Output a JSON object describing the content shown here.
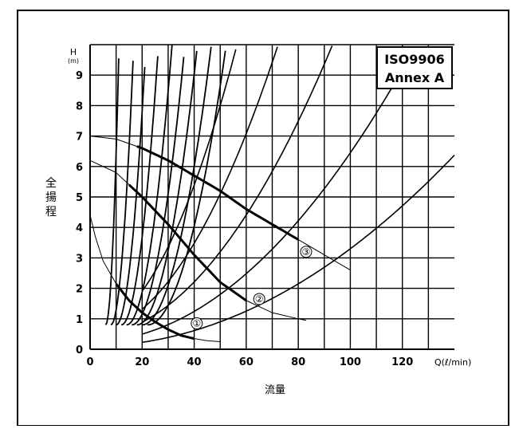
{
  "chart_data": {
    "type": "line",
    "badge": [
      "ISO9906",
      "Annex A"
    ],
    "ylabel": [
      "全",
      "揚",
      "程"
    ],
    "y_unit": [
      "H",
      "(m)"
    ],
    "xlabel": "流量",
    "x_unit": "Q(ℓ/min)",
    "xlim": [
      0,
      140
    ],
    "ylim": [
      0,
      10
    ],
    "x_ticks": [
      "0",
      "20",
      "40",
      "60",
      "80",
      "100",
      "120"
    ],
    "y_ticks": [
      "0",
      "1",
      "2",
      "3",
      "4",
      "5",
      "6",
      "7",
      "8",
      "9"
    ],
    "grid": true,
    "series": [
      {
        "label": "①",
        "x": [
          0,
          2,
          5,
          10,
          15,
          20,
          25,
          30,
          35,
          40,
          45,
          50
        ],
        "y": [
          4.4,
          3.7,
          2.9,
          2.15,
          1.6,
          1.2,
          0.9,
          0.65,
          0.45,
          0.35,
          0.28,
          0.25
        ],
        "emphasis_x": [
          10,
          40
        ],
        "label_at": [
          41,
          0.85
        ]
      },
      {
        "label": "②",
        "x": [
          0,
          10,
          20,
          30,
          40,
          50,
          60,
          70,
          80,
          83
        ],
        "y": [
          6.2,
          5.8,
          5.0,
          4.1,
          3.1,
          2.2,
          1.6,
          1.2,
          1.0,
          0.95
        ],
        "emphasis_x": [
          15,
          60
        ],
        "label_at": [
          65,
          1.65
        ]
      },
      {
        "label": "③",
        "x": [
          0,
          10,
          20,
          30,
          40,
          50,
          60,
          70,
          80,
          90,
          100
        ],
        "y": [
          7.0,
          6.9,
          6.6,
          6.2,
          5.7,
          5.2,
          4.6,
          4.1,
          3.6,
          3.1,
          2.6
        ],
        "emphasis_x": [
          18,
          80
        ],
        "label_at": [
          83,
          3.2
        ]
      }
    ]
  }
}
